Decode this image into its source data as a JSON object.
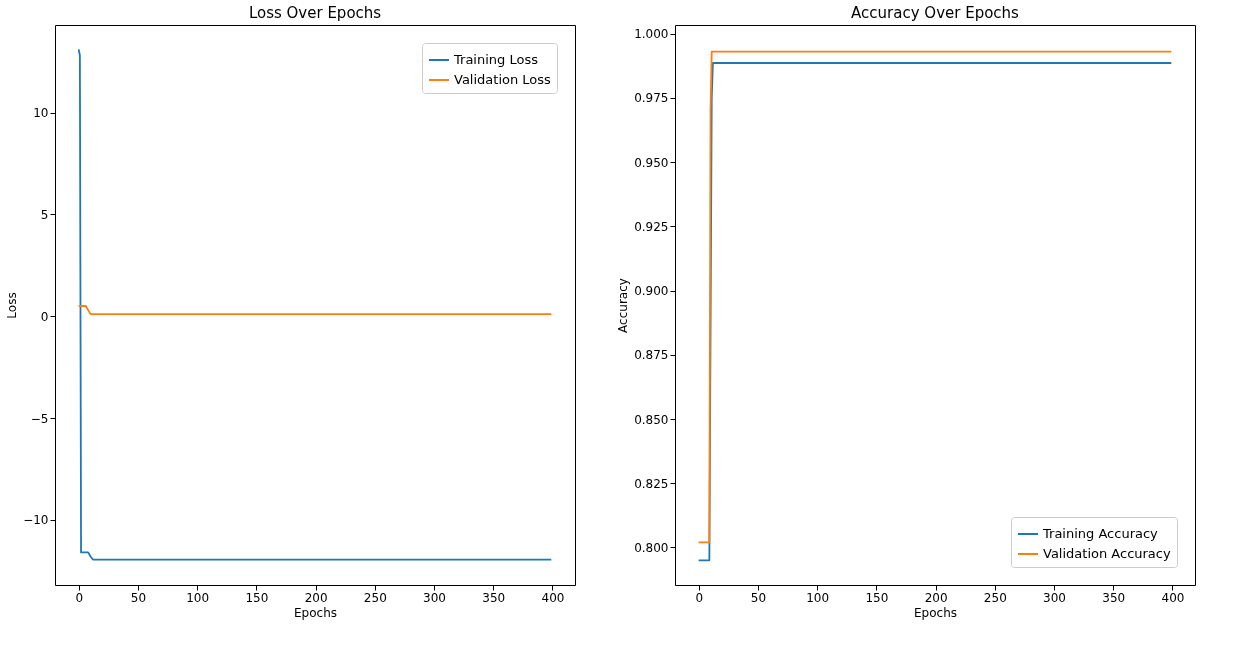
{
  "chart_data": [
    {
      "type": "line",
      "title": "Loss Over Epochs",
      "xlabel": "Epochs",
      "ylabel": "Loss",
      "legend": "top right",
      "grid": false,
      "xlim": [
        -20,
        419
      ],
      "xticks": [
        0,
        50,
        100,
        150,
        200,
        250,
        300,
        350,
        400
      ],
      "ylim": [
        -13.2,
        14.3
      ],
      "yticks": [
        {
          "value": -10,
          "label": "−10"
        },
        {
          "value": -5,
          "label": "−5"
        },
        0,
        5,
        10
      ],
      "series": [
        {
          "name": "Training Loss",
          "color": "#1f77b4",
          "x": [
            0,
            1,
            2,
            8,
            10,
            12,
            399
          ],
          "values": [
            13.1,
            12.8,
            -11.6,
            -11.6,
            -11.8,
            -11.95,
            -11.95
          ]
        },
        {
          "name": "Validation Loss",
          "color": "#ff7f0e",
          "x": [
            0,
            6,
            8,
            10,
            399
          ],
          "values": [
            0.5,
            0.5,
            0.3,
            0.1,
            0.1
          ]
        }
      ]
    },
    {
      "type": "line",
      "title": "Accuracy Over Epochs",
      "xlabel": "Epochs",
      "ylabel": "Accuracy",
      "legend": "bottom right",
      "grid": false,
      "xlim": [
        -20,
        419
      ],
      "xticks": [
        0,
        50,
        100,
        150,
        200,
        250,
        300,
        350,
        400
      ],
      "ylim": [
        0.7854,
        1.0034
      ],
      "yticks": [
        {
          "value": 0.8,
          "label": "0.800"
        },
        {
          "value": 0.825,
          "label": "0.825"
        },
        {
          "value": 0.85,
          "label": "0.850"
        },
        {
          "value": 0.875,
          "label": "0.875"
        },
        {
          "value": 0.9,
          "label": "0.900"
        },
        {
          "value": 0.925,
          "label": "0.925"
        },
        {
          "value": 0.95,
          "label": "0.950"
        },
        {
          "value": 0.975,
          "label": "0.975"
        },
        {
          "value": 1.0,
          "label": "1.000"
        }
      ],
      "series": [
        {
          "name": "Training Accuracy",
          "color": "#1f77b4",
          "x": [
            0,
            9,
            11,
            12,
            399
          ],
          "values": [
            0.795,
            0.795,
            0.975,
            0.9886,
            0.9886
          ]
        },
        {
          "name": "Validation Accuracy",
          "color": "#ff7f0e",
          "x": [
            0,
            9,
            10,
            11,
            399
          ],
          "values": [
            0.802,
            0.802,
            0.97,
            0.993,
            0.993
          ]
        }
      ]
    }
  ]
}
